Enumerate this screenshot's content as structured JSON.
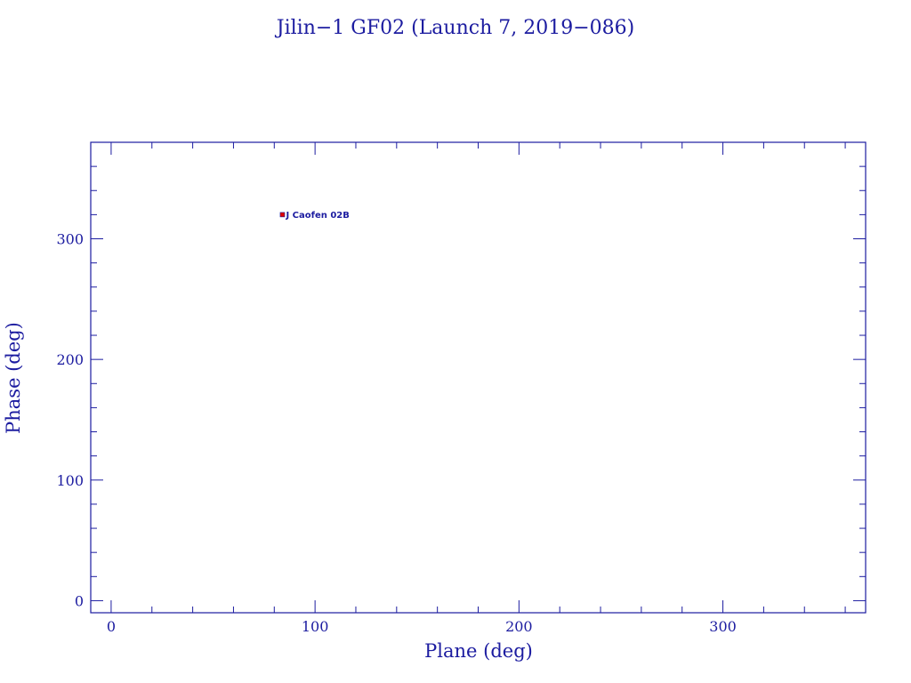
{
  "colors": {
    "ink": "#1c1ca0",
    "marker": "#e00000",
    "background": "#ffffff"
  },
  "chart_data": {
    "type": "scatter",
    "title": "Jilin−1 GF02 (Launch 7, 2019−086)",
    "xlabel": "Plane (deg)",
    "ylabel": "Phase (deg)",
    "xlim": [
      -10,
      370
    ],
    "ylim": [
      -10,
      380
    ],
    "x_ticks": [
      0,
      100,
      200,
      300
    ],
    "y_ticks": [
      0,
      100,
      200,
      300
    ],
    "grid": false,
    "points": [
      {
        "x": 84,
        "y": 320,
        "label": "J Caofen 02B"
      }
    ]
  }
}
